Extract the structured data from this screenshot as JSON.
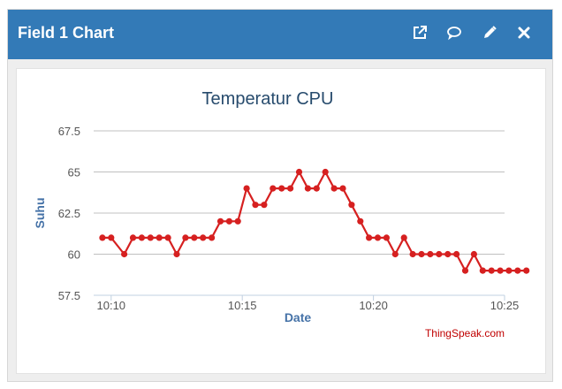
{
  "header": {
    "title": "Field 1 Chart",
    "icons": [
      "external-link-icon",
      "comment-icon",
      "pencil-icon",
      "close-icon"
    ]
  },
  "colors": {
    "header_bg": "#337ab7",
    "series": "#d62020",
    "axis_label": "#4572a7",
    "credit": "#c00000"
  },
  "chart_data": {
    "type": "line",
    "title": "Temperatur CPU",
    "xlabel": "Date",
    "ylabel": "Suhu",
    "ylim": [
      57.5,
      67.5
    ],
    "yticks": [
      "57.5",
      "60",
      "62.5",
      "65",
      "67.5"
    ],
    "xticks": [
      "10:10",
      "10:15",
      "10:20",
      "10:25"
    ],
    "grid": true,
    "legend": "none",
    "credit": "ThingSpeak.com",
    "series": [
      {
        "x": [
          "10:09:40",
          "10:10:00",
          "10:10:30",
          "10:10:50",
          "10:11:10",
          "10:11:30",
          "10:11:50",
          "10:12:10",
          "10:12:30",
          "10:12:50",
          "10:13:10",
          "10:13:30",
          "10:13:50",
          "10:14:10",
          "10:14:30",
          "10:14:50",
          "10:15:10",
          "10:15:30",
          "10:15:50",
          "10:16:10",
          "10:16:30",
          "10:16:50",
          "10:17:10",
          "10:17:30",
          "10:17:50",
          "10:18:10",
          "10:18:30",
          "10:18:50",
          "10:19:10",
          "10:19:30",
          "10:19:50",
          "10:20:10",
          "10:20:30",
          "10:20:50",
          "10:21:10",
          "10:21:30",
          "10:21:50",
          "10:22:10",
          "10:22:30",
          "10:22:50",
          "10:23:10",
          "10:23:30",
          "10:23:50",
          "10:24:10",
          "10:24:30",
          "10:24:50",
          "10:25:10",
          "10:25:30",
          "10:25:50"
        ],
        "values": [
          61,
          61,
          60,
          61,
          61,
          61,
          61,
          61,
          60,
          61,
          61,
          61,
          61,
          62,
          62,
          62,
          64,
          63,
          63,
          64,
          64,
          64,
          65,
          64,
          64,
          65,
          64,
          64,
          63,
          62,
          61,
          61,
          61,
          60,
          61,
          60,
          60,
          60,
          60,
          60,
          60,
          59,
          60,
          59,
          59,
          59,
          59,
          59,
          59
        ]
      }
    ]
  }
}
